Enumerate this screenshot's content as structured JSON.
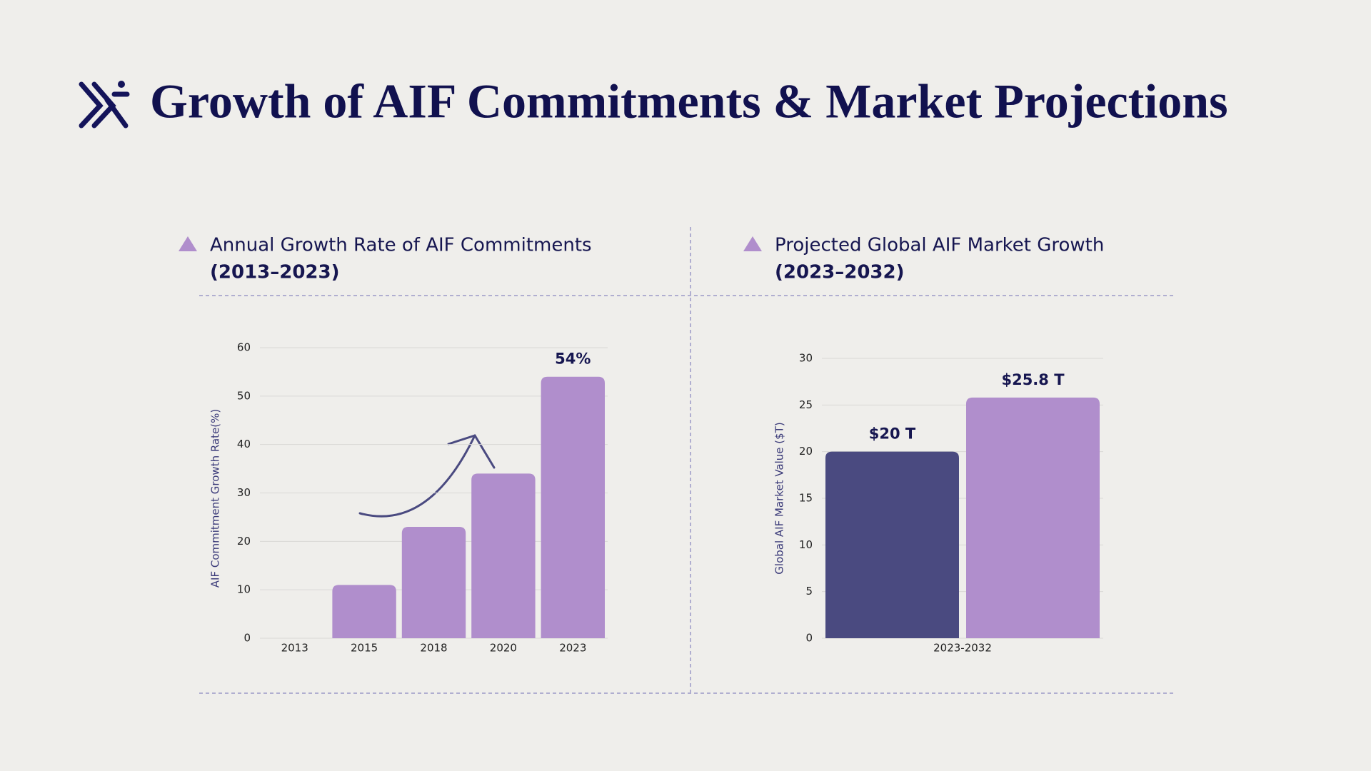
{
  "title": "Growth of AIF Commitments & Market Projections",
  "chart_data": [
    {
      "type": "bar",
      "title": "Annual Growth Rate of AIF Commitments",
      "subtitle": "(2013–2023)",
      "y_label": "AIF Commitment Growth Rate(%)",
      "categories": [
        "2013",
        "2015",
        "2018",
        "2020",
        "2023"
      ],
      "series": [
        {
          "color": "#b08ecc",
          "values": [
            0,
            11,
            23,
            34,
            54
          ],
          "value_labels": [
            null,
            null,
            null,
            null,
            "54%"
          ]
        }
      ],
      "ylim": [
        0,
        60
      ],
      "yticks": [
        0,
        10,
        20,
        30,
        40,
        50,
        60
      ],
      "grid": true
    },
    {
      "type": "bar",
      "title": "Projected Global AIF Market Growth",
      "subtitle": "(2023–2032)",
      "y_label": "Global AIF Market Value ($T)",
      "categories": [
        "2023-2032"
      ],
      "series": [
        {
          "color": "#4a4a80",
          "values": [
            20
          ],
          "value_labels": [
            "$20 T"
          ]
        },
        {
          "color": "#b08ecc",
          "values": [
            25.8
          ],
          "value_labels": [
            "$25.8 T"
          ]
        }
      ],
      "ylim": [
        0,
        30
      ],
      "yticks": [
        0,
        5,
        10,
        15,
        20,
        25,
        30
      ],
      "grid": true
    }
  ]
}
